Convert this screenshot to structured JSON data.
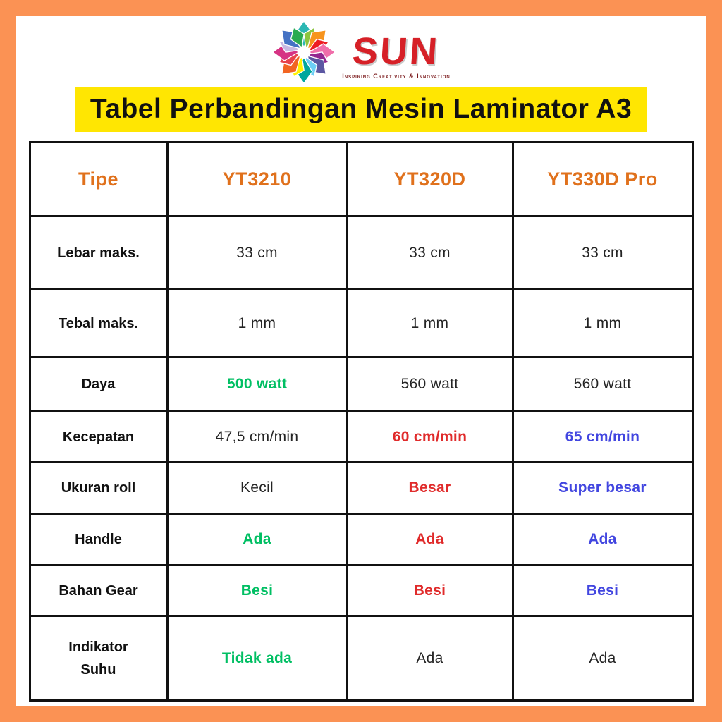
{
  "logo": {
    "brand": "SUN",
    "tagline": "Inspiring Creativity & Innovation",
    "petal_colors": [
      "#2BB7B3",
      "#8BC53F",
      "#F7941D",
      "#ED1C24",
      "#F06EAA",
      "#92278F",
      "#5B57A2",
      "#6DCFF6",
      "#00A79D",
      "#FFF200",
      "#F26522",
      "#E8434C",
      "#D63384",
      "#C7B9E2",
      "#4472C4",
      "#29AB51"
    ]
  },
  "title": "Tabel Perbandingan Mesin Laminator A3",
  "colors": {
    "frame_orange": "#FB9254",
    "title_bg": "#FFE602",
    "header_text": "#E0711C",
    "brand_red": "#D62027",
    "green": "#00BF63",
    "red": "#E02B2B",
    "blue": "#4246E0",
    "black": "#242424"
  },
  "table": {
    "columns": [
      "Tipe",
      "YT3210",
      "YT320D",
      "YT330D Pro"
    ],
    "rows": [
      {
        "label": "Lebar maks.",
        "cells": [
          {
            "text": "33 cm",
            "color": "black",
            "bold": false
          },
          {
            "text": "33 cm",
            "color": "black",
            "bold": false
          },
          {
            "text": "33 cm",
            "color": "black",
            "bold": false
          }
        ]
      },
      {
        "label": "Tebal maks.",
        "cells": [
          {
            "text": "1 mm",
            "color": "black",
            "bold": false
          },
          {
            "text": "1 mm",
            "color": "black",
            "bold": false
          },
          {
            "text": "1 mm",
            "color": "black",
            "bold": false
          }
        ]
      },
      {
        "label": "Daya",
        "cells": [
          {
            "text": "500 watt",
            "color": "green",
            "bold": true
          },
          {
            "text": "560 watt",
            "color": "black",
            "bold": false
          },
          {
            "text": "560 watt",
            "color": "black",
            "bold": false
          }
        ]
      },
      {
        "label": "Kecepatan",
        "cells": [
          {
            "text": "47,5 cm/min",
            "color": "black",
            "bold": false
          },
          {
            "text": "60 cm/min",
            "color": "red",
            "bold": true
          },
          {
            "text": "65 cm/min",
            "color": "blue",
            "bold": true
          }
        ]
      },
      {
        "label": "Ukuran roll",
        "cells": [
          {
            "text": "Kecil",
            "color": "black",
            "bold": false
          },
          {
            "text": "Besar",
            "color": "red",
            "bold": true
          },
          {
            "text": "Super besar",
            "color": "blue",
            "bold": true
          }
        ]
      },
      {
        "label": "Handle",
        "cells": [
          {
            "text": "Ada",
            "color": "green",
            "bold": true
          },
          {
            "text": "Ada",
            "color": "red",
            "bold": true
          },
          {
            "text": "Ada",
            "color": "blue",
            "bold": true
          }
        ]
      },
      {
        "label": "Bahan Gear",
        "cells": [
          {
            "text": "Besi",
            "color": "green",
            "bold": true
          },
          {
            "text": "Besi",
            "color": "red",
            "bold": true
          },
          {
            "text": "Besi",
            "color": "blue",
            "bold": true
          }
        ]
      },
      {
        "label": "Indikator Suhu",
        "cells": [
          {
            "text": "Tidak ada",
            "color": "green",
            "bold": true
          },
          {
            "text": "Ada",
            "color": "black",
            "bold": false
          },
          {
            "text": "Ada",
            "color": "black",
            "bold": false
          }
        ]
      }
    ]
  }
}
